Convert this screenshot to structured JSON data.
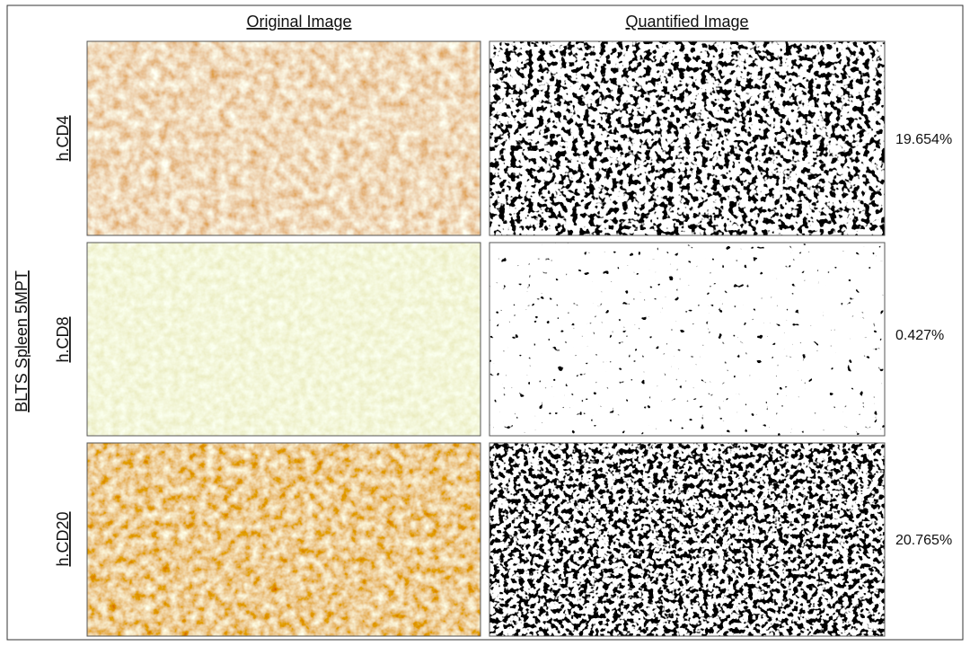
{
  "columns": [
    "Original Image",
    "Quantified Image"
  ],
  "side_label": "BLTS Spleen 5MPT",
  "rows": [
    {
      "label": "h.CD4",
      "percentage": "19.654%"
    },
    {
      "label": "h.CD8",
      "percentage": "0.427%"
    },
    {
      "label": "h.CD20",
      "percentage": "20.765%"
    }
  ]
}
